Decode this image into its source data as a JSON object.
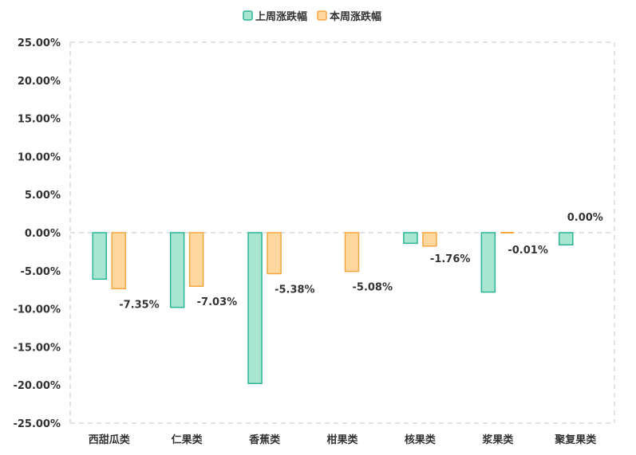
{
  "chart_data": {
    "type": "bar",
    "categories": [
      "西甜瓜类",
      "仁果类",
      "香蕉类",
      "柑果类",
      "核果类",
      "浆果类",
      "聚复果类"
    ],
    "series": [
      {
        "name": "上周涨跌幅",
        "values": [
          -6.1,
          -9.8,
          -19.8,
          0.0,
          -1.4,
          -7.8,
          -1.6
        ],
        "color": "#a8e6d2",
        "stroke": "#2bb594"
      },
      {
        "name": "本周涨跌幅",
        "values": [
          -7.35,
          -7.03,
          -5.38,
          -5.08,
          -1.76,
          -0.01,
          0.0
        ],
        "labels": [
          "-7.35%",
          "-7.03%",
          "-5.38%",
          "-5.08%",
          "-1.76%",
          "-0.01%",
          "0.00%"
        ],
        "color": "#ffd8a0",
        "stroke": "#f5a742"
      }
    ],
    "yticks": [
      "25.00%",
      "20.00%",
      "15.00%",
      "10.00%",
      "5.00%",
      "0.00%",
      "-5.00%",
      "-10.00%",
      "-15.00%",
      "-20.00%",
      "-25.00%"
    ],
    "ylim": [
      -25,
      25
    ],
    "ystep": 5,
    "legend_position": "top-center",
    "grid": "dashed"
  }
}
